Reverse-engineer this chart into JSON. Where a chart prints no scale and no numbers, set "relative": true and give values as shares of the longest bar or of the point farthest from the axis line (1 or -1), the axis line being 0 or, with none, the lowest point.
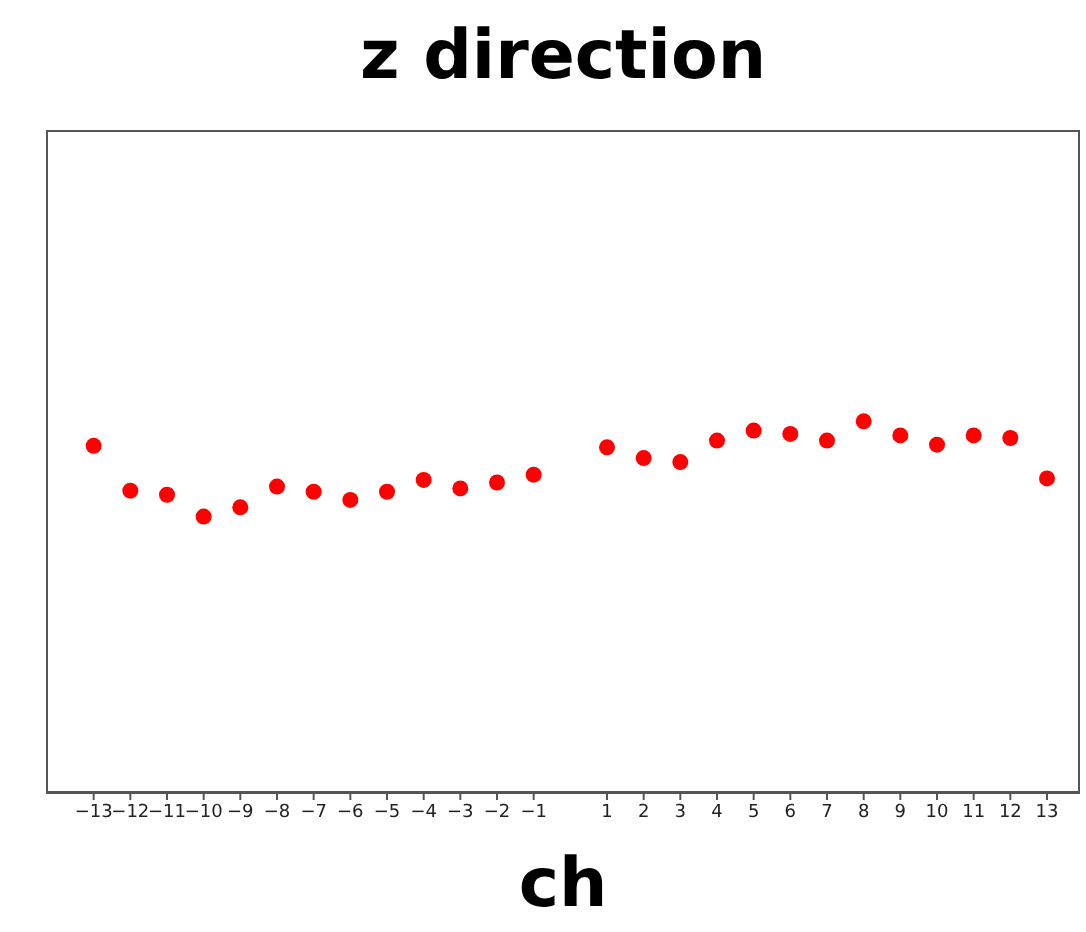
{
  "chart_data": {
    "type": "scatter",
    "title": "z direction",
    "xlabel": "ch",
    "relative": true,
    "marker": "circle",
    "x": [
      -13,
      -12,
      -11,
      -10,
      -9,
      -8,
      -7,
      -6,
      -5,
      -4,
      -3,
      -2,
      -1,
      1,
      2,
      3,
      4,
      5,
      6,
      7,
      8,
      9,
      10,
      11,
      12,
      13
    ],
    "xlim": [
      -14.3,
      13.9
    ],
    "xticks": [
      -13,
      -12,
      -11,
      -10,
      -9,
      -8,
      -7,
      -6,
      -5,
      -4,
      -3,
      -2,
      -1,
      1,
      2,
      3,
      4,
      5,
      6,
      7,
      8,
      9,
      10,
      11,
      12,
      13
    ],
    "series": [
      {
        "color": "#ff0000",
        "values": [
          0.934,
          0.813,
          0.802,
          0.743,
          0.768,
          0.824,
          0.81,
          0.788,
          0.81,
          0.842,
          0.819,
          0.835,
          0.856,
          0.93,
          0.901,
          0.89,
          0.948,
          0.975,
          0.966,
          0.948,
          1,
          0.962,
          0.937,
          0.962,
          0.955,
          0.846
        ]
      }
    ]
  }
}
